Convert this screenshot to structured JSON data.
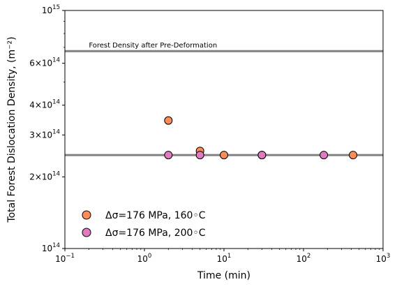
{
  "chart_data": {
    "type": "scatter",
    "xscale": "log",
    "yscale": "log",
    "xlim": [
      0.1,
      1000
    ],
    "ylim": [
      100000000000000.0,
      1000000000000000.0
    ],
    "xlabel": "Time (min)",
    "ylabel": "Total Forest Dislocation Density, (m⁻²)",
    "grid": false,
    "legend_position": "lower-left",
    "x_ticks": [
      {
        "value": 0.1,
        "base": "10",
        "exp": "−1"
      },
      {
        "value": 1,
        "base": "10",
        "exp": "0"
      },
      {
        "value": 10,
        "base": "10",
        "exp": "1"
      },
      {
        "value": 100,
        "base": "10",
        "exp": "2"
      },
      {
        "value": 1000,
        "base": "10",
        "exp": "3"
      }
    ],
    "y_ticks": [
      {
        "value": 100000000000000.0,
        "label": "10",
        "exp": "14"
      },
      {
        "value": 200000000000000.0,
        "label": "2×10",
        "exp": "14"
      },
      {
        "value": 300000000000000.0,
        "label": "3×10",
        "exp": "14"
      },
      {
        "value": 400000000000000.0,
        "label": "4×10",
        "exp": "14"
      },
      {
        "value": 600000000000000.0,
        "label": "6×10",
        "exp": "14"
      },
      {
        "value": 1000000000000000.0,
        "label": "10",
        "exp": "15"
      }
    ],
    "y_minor_ticks": [
      500000000000000.0,
      700000000000000.0,
      800000000000000.0,
      900000000000000.0
    ],
    "reference_lines": [
      {
        "y": 675000000000000.0,
        "color": "#808080",
        "label": "Forest Density after Pre-Deformation"
      },
      {
        "y": 247000000000000.0,
        "color": "#808080",
        "label": ""
      }
    ],
    "series": [
      {
        "name": "Δσ=176 MPa, 160◦C",
        "color": "#fc8d59",
        "points": [
          {
            "x": 2,
            "y": 345000000000000.0
          },
          {
            "x": 5,
            "y": 257000000000000.0
          },
          {
            "x": 10,
            "y": 247000000000000.0
          },
          {
            "x": 30,
            "y": 247000000000000.0
          },
          {
            "x": 420,
            "y": 247000000000000.0
          }
        ]
      },
      {
        "name": "Δσ=176 MPa, 200◦C",
        "color": "#e07bc0",
        "points": [
          {
            "x": 2,
            "y": 247000000000000.0
          },
          {
            "x": 5,
            "y": 247000000000000.0
          },
          {
            "x": 30,
            "y": 247000000000000.0
          },
          {
            "x": 180,
            "y": 247000000000000.0
          }
        ]
      }
    ]
  }
}
